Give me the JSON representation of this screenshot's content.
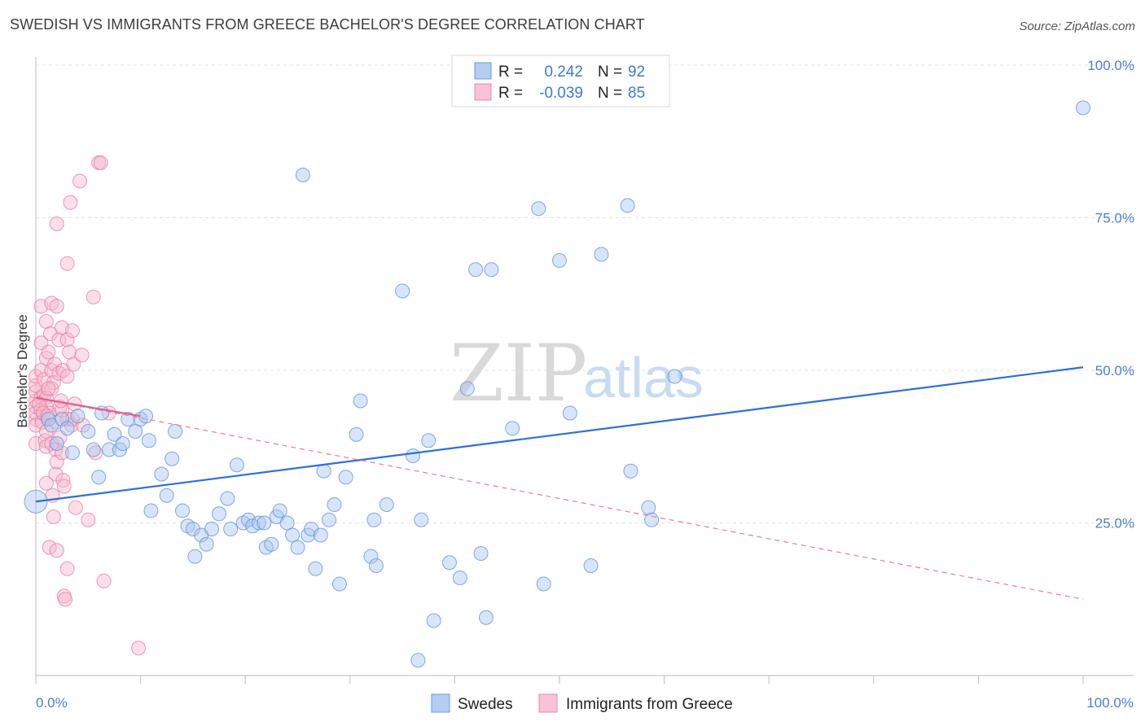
{
  "title": "SWEDISH VS IMMIGRANTS FROM GREECE BACHELOR'S DEGREE CORRELATION CHART",
  "source": "Source: ZipAtlas.com",
  "watermark": {
    "zip": "ZIP",
    "atlas": "atlas"
  },
  "chart_data": {
    "type": "scatter",
    "xlabel": "",
    "ylabel": "Bachelor's Degree",
    "xlim": [
      0,
      100
    ],
    "ylim": [
      0,
      100
    ],
    "x_tick_labels": {
      "min": "0.0%",
      "max": "100.0%"
    },
    "y_tick_labels": [
      "100.0%",
      "75.0%",
      "50.0%",
      "25.0%"
    ],
    "y_tick_values": [
      100,
      75,
      50,
      25
    ],
    "legend": {
      "rows": [
        {
          "r_label": "R =",
          "r_value": "0.242",
          "n_label": "N =",
          "n_value": "92"
        },
        {
          "r_label": "R =",
          "r_value": "-0.039",
          "n_label": "N =",
          "n_value": "85"
        }
      ]
    },
    "series": [
      {
        "name": "Swedes",
        "color": "#5b8fd9",
        "fill": "#a9c6f0",
        "trend": {
          "x0": 0,
          "y0": 28.5,
          "x1": 100,
          "y1": 50.5,
          "style": "solid"
        },
        "points": [
          [
            0,
            28.5
          ],
          [
            1.2,
            42
          ],
          [
            1.5,
            41
          ],
          [
            2,
            38
          ],
          [
            2.5,
            42
          ],
          [
            3,
            40.5
          ],
          [
            3.5,
            36.5
          ],
          [
            4,
            42.5
          ],
          [
            5,
            40
          ],
          [
            5.5,
            37
          ],
          [
            6,
            32.5
          ],
          [
            6.3,
            43
          ],
          [
            7,
            37
          ],
          [
            7.5,
            39.5
          ],
          [
            8,
            37
          ],
          [
            8.3,
            38
          ],
          [
            8.8,
            42
          ],
          [
            9.5,
            40
          ],
          [
            10,
            42
          ],
          [
            10.5,
            42.5
          ],
          [
            10.8,
            38.5
          ],
          [
            11,
            27
          ],
          [
            12,
            33
          ],
          [
            12.5,
            29.5
          ],
          [
            13,
            35.5
          ],
          [
            13.3,
            40
          ],
          [
            14,
            27
          ],
          [
            14.5,
            24.5
          ],
          [
            15,
            24
          ],
          [
            15.2,
            19.5
          ],
          [
            15.8,
            23
          ],
          [
            16.3,
            21.5
          ],
          [
            16.8,
            24
          ],
          [
            17.5,
            26.5
          ],
          [
            18.3,
            29
          ],
          [
            18.6,
            24
          ],
          [
            19.2,
            34.5
          ],
          [
            19.8,
            25
          ],
          [
            20.3,
            25.5
          ],
          [
            20.7,
            24.5
          ],
          [
            21.3,
            25
          ],
          [
            21.8,
            25
          ],
          [
            22,
            21
          ],
          [
            22.5,
            21.5
          ],
          [
            23,
            26
          ],
          [
            23.3,
            27
          ],
          [
            24,
            25
          ],
          [
            24.5,
            23
          ],
          [
            25,
            21
          ],
          [
            25.5,
            82
          ],
          [
            26,
            23
          ],
          [
            26.3,
            24
          ],
          [
            26.7,
            17.5
          ],
          [
            27.2,
            23
          ],
          [
            27.5,
            33.5
          ],
          [
            28,
            25.5
          ],
          [
            28.5,
            28
          ],
          [
            29,
            15
          ],
          [
            29.6,
            32.5
          ],
          [
            30.6,
            39.5
          ],
          [
            31,
            45
          ],
          [
            32,
            19.5
          ],
          [
            32.5,
            18
          ],
          [
            32.3,
            25.5
          ],
          [
            33.5,
            28
          ],
          [
            35,
            63
          ],
          [
            36,
            36
          ],
          [
            36.5,
            2.5
          ],
          [
            36.8,
            25.5
          ],
          [
            37.5,
            38.5
          ],
          [
            38,
            9
          ],
          [
            39.5,
            18.5
          ],
          [
            40.5,
            16
          ],
          [
            41.2,
            47
          ],
          [
            42,
            66.5
          ],
          [
            42.5,
            20
          ],
          [
            43,
            9.5
          ],
          [
            43.5,
            66.5
          ],
          [
            45.5,
            40.5
          ],
          [
            48,
            76.5
          ],
          [
            48.5,
            15
          ],
          [
            50,
            68
          ],
          [
            51,
            43
          ],
          [
            53,
            18
          ],
          [
            54,
            69
          ],
          [
            56.5,
            77
          ],
          [
            56.8,
            33.5
          ],
          [
            58.5,
            27.5
          ],
          [
            58.8,
            25.5
          ],
          [
            61,
            49
          ],
          [
            100,
            93
          ]
        ]
      },
      {
        "name": "Immigrants from Greece",
        "color": "#e87aa0",
        "fill": "#f5b8cc",
        "trend_solid": {
          "x0": 0,
          "y0": 45.5,
          "x1": 10,
          "y1": 42.5
        },
        "trend": {
          "x0": 0,
          "y0": 45.5,
          "x1": 100,
          "y1": 12.5,
          "style": "dashed"
        },
        "points": [
          [
            0,
            45
          ],
          [
            0,
            46.5
          ],
          [
            0,
            44
          ],
          [
            0,
            42
          ],
          [
            0,
            38
          ],
          [
            0,
            47.5
          ],
          [
            0,
            49
          ],
          [
            0,
            43
          ],
          [
            0,
            41
          ],
          [
            0.5,
            50
          ],
          [
            0.5,
            45.5
          ],
          [
            0.5,
            43.5
          ],
          [
            0.5,
            60.5
          ],
          [
            0.5,
            54.5
          ],
          [
            0.6,
            41.5
          ],
          [
            0.8,
            48.5
          ],
          [
            0.8,
            46
          ],
          [
            0.9,
            38.5
          ],
          [
            1,
            58
          ],
          [
            1,
            52
          ],
          [
            1,
            45.5
          ],
          [
            1,
            44
          ],
          [
            1,
            40
          ],
          [
            1,
            37.5
          ],
          [
            1,
            31.5
          ],
          [
            1.2,
            53
          ],
          [
            1.3,
            21
          ],
          [
            1.3,
            43
          ],
          [
            1.4,
            56
          ],
          [
            1.5,
            61
          ],
          [
            1.5,
            50
          ],
          [
            1.5,
            47
          ],
          [
            1.5,
            38
          ],
          [
            1.6,
            29.5
          ],
          [
            1.7,
            26
          ],
          [
            1.7,
            48
          ],
          [
            1.8,
            51
          ],
          [
            1.9,
            33
          ],
          [
            1.9,
            37
          ],
          [
            2,
            20.5
          ],
          [
            2,
            60.5
          ],
          [
            2,
            74
          ],
          [
            2,
            41.5
          ],
          [
            2,
            35
          ],
          [
            2.2,
            55
          ],
          [
            2.2,
            49.5
          ],
          [
            2.3,
            44
          ],
          [
            2.3,
            39
          ],
          [
            2.5,
            57
          ],
          [
            2.5,
            43.5
          ],
          [
            2.5,
            36.5
          ],
          [
            2.6,
            50
          ],
          [
            2.6,
            32
          ],
          [
            2.7,
            31
          ],
          [
            2.7,
            13
          ],
          [
            2.8,
            12.5
          ],
          [
            3,
            67.5
          ],
          [
            3,
            55
          ],
          [
            3,
            49
          ],
          [
            3,
            42
          ],
          [
            3,
            17.5
          ],
          [
            3.2,
            53
          ],
          [
            3.3,
            77.5
          ],
          [
            3.4,
            41
          ],
          [
            3.5,
            56.5
          ],
          [
            3.5,
            42
          ],
          [
            3.6,
            51
          ],
          [
            3.7,
            44.5
          ],
          [
            3.8,
            27.5
          ],
          [
            4.2,
            81
          ],
          [
            4.4,
            52.5
          ],
          [
            4.5,
            41
          ],
          [
            5,
            25.5
          ],
          [
            5.5,
            62
          ],
          [
            5.7,
            36.5
          ],
          [
            6,
            84
          ],
          [
            6.2,
            84
          ],
          [
            6.5,
            15.5
          ],
          [
            7,
            43
          ],
          [
            9.8,
            4.5
          ],
          [
            0.3,
            44.5
          ],
          [
            0.7,
            43
          ],
          [
            1.1,
            42.5
          ],
          [
            2.4,
            45
          ],
          [
            1.2,
            47
          ]
        ]
      }
    ]
  }
}
